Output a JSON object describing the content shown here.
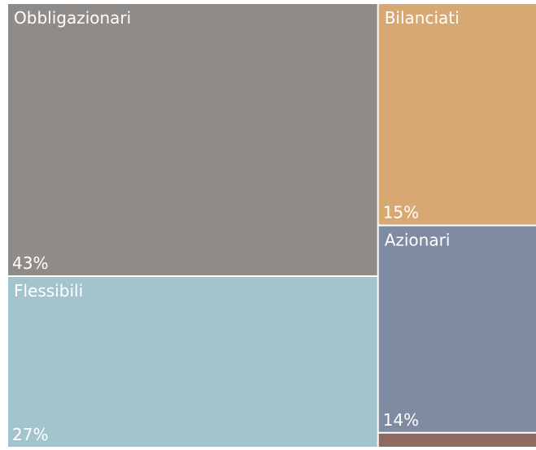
{
  "chart_data": {
    "type": "treemap",
    "categories": [
      "Obbligazionari",
      "Flessibili",
      "Bilanciati",
      "Azionari",
      null
    ],
    "values": [
      43,
      27,
      15,
      14,
      1
    ],
    "value_labels": [
      "43%",
      "27%",
      "15%",
      "14%",
      null
    ],
    "colors": [
      "#8f8b89",
      "#a3c4cc",
      "#d8a872",
      "#7f8ba0",
      "#8e6a60"
    ]
  }
}
